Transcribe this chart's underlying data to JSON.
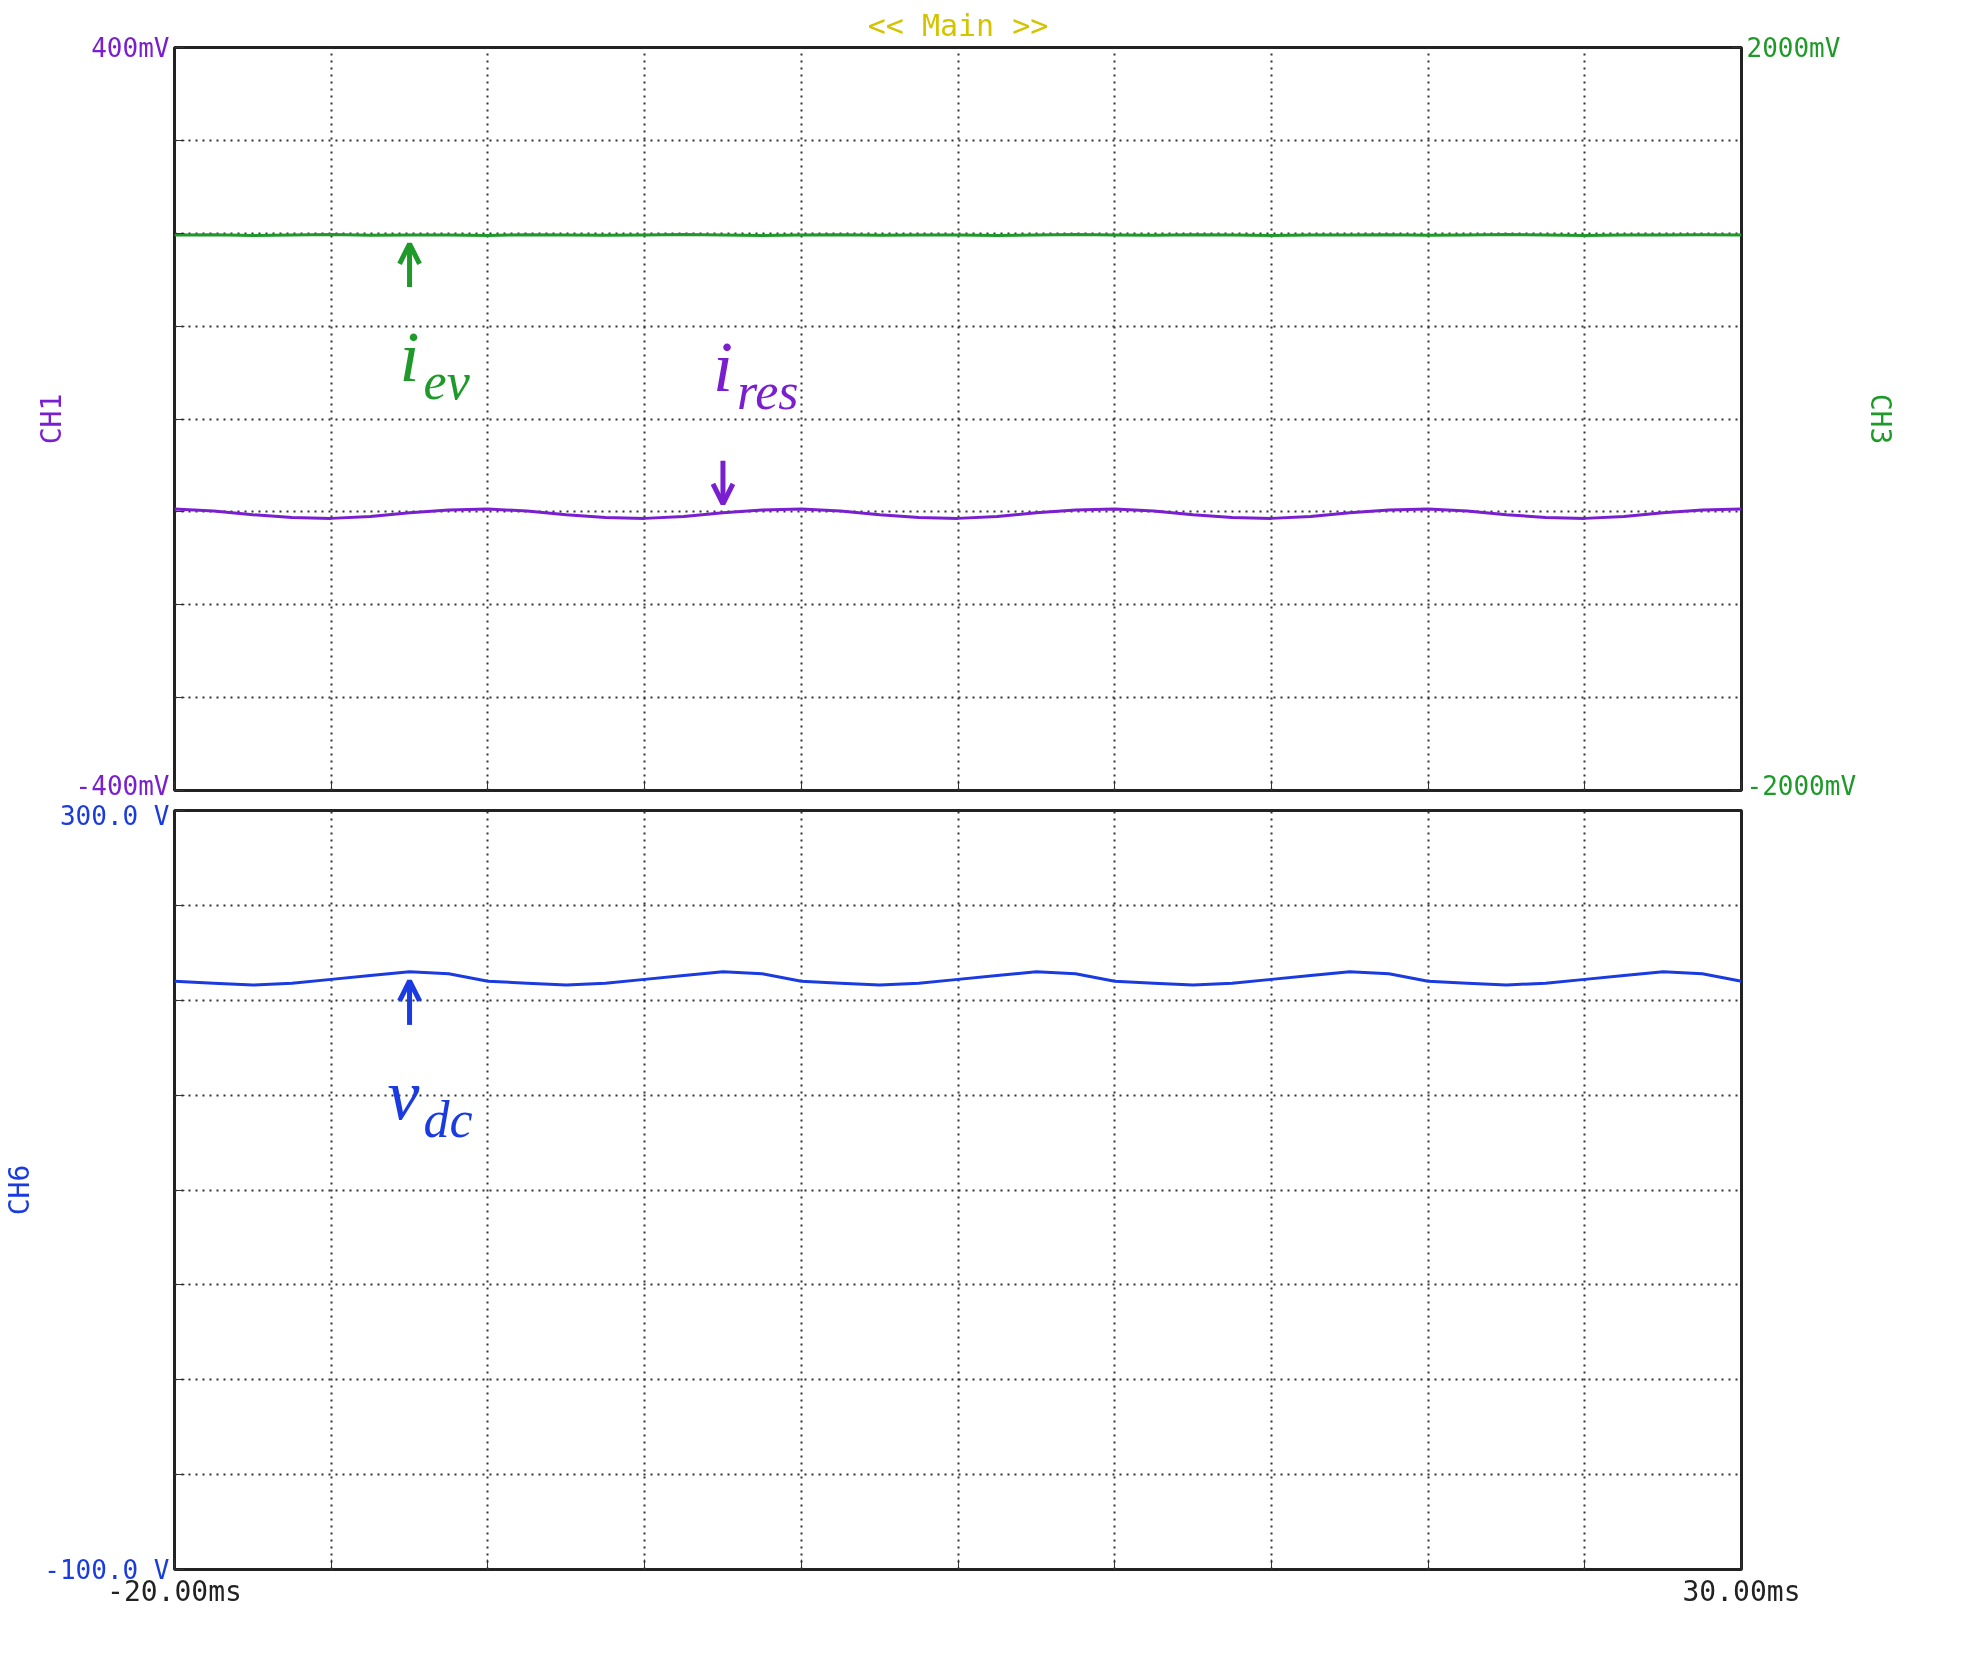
{
  "chart_data": [
    {
      "type": "line",
      "title": "<< Main >>",
      "ylabel": "CH1",
      "y2label": "CH3",
      "x": [
        -20,
        -18.75,
        -17.5,
        -16.25,
        -15,
        -13.75,
        -12.5,
        -11.25,
        -10,
        -8.75,
        -7.5,
        -6.25,
        -5,
        -3.75,
        -2.5,
        -1.25,
        0,
        1.25,
        2.5,
        3.75,
        5,
        6.25,
        7.5,
        8.75,
        10,
        11.25,
        12.5,
        13.75,
        15,
        16.25,
        17.5,
        18.75,
        20,
        21.25,
        22.5,
        23.75,
        25,
        26.25,
        27.5,
        28.75,
        30
      ],
      "series": [
        {
          "name": "i$_{ev}$",
          "color": "#1f9a2a",
          "axis": "y2",
          "values": [
            990,
            992,
            988,
            990,
            993,
            989,
            991,
            990,
            988,
            992,
            990,
            989,
            991,
            993,
            990,
            988,
            990,
            992,
            989,
            991,
            990,
            988,
            991,
            993,
            990,
            989,
            992,
            990,
            988,
            991,
            990,
            992,
            989,
            990,
            993,
            990,
            988,
            991,
            990,
            992,
            990
          ]
        },
        {
          "name": "i$_{res}$",
          "color": "#7a1fd0",
          "values": [
            -97,
            -99,
            -103,
            -106,
            -107,
            -105,
            -101,
            -98,
            -97,
            -99,
            -103,
            -106,
            -107,
            -105,
            -101,
            -98,
            -97,
            -99,
            -103,
            -106,
            -107,
            -105,
            -101,
            -98,
            -97,
            -99,
            -103,
            -106,
            -107,
            -105,
            -101,
            -98,
            -97,
            -99,
            -103,
            -106,
            -107,
            -105,
            -101,
            -98,
            -97
          ]
        }
      ],
      "xlim": [
        -20,
        30
      ],
      "xticks": [
        {
          "value": -20,
          "label": null
        },
        {
          "value": -15,
          "label": null
        },
        {
          "value": -10,
          "label": null
        },
        {
          "value": -5,
          "label": null
        },
        {
          "value": 0,
          "label": null
        },
        {
          "value": 5,
          "label": null
        },
        {
          "value": 10,
          "label": null
        },
        {
          "value": 15,
          "label": null
        },
        {
          "value": 20,
          "label": null
        },
        {
          "value": 25,
          "label": null
        },
        {
          "value": 30,
          "label": null
        }
      ],
      "ylim": [
        -400,
        400
      ],
      "yticks": [
        {
          "value": -400,
          "label": "-400mV"
        },
        {
          "value": -300,
          "label": null
        },
        {
          "value": -200,
          "label": null
        },
        {
          "value": -100,
          "label": null
        },
        {
          "value": 0,
          "label": null
        },
        {
          "value": 100,
          "label": null
        },
        {
          "value": 200,
          "label": null
        },
        {
          "value": 300,
          "label": null
        },
        {
          "value": 400,
          "label": "400mV"
        }
      ],
      "y2lim": [
        -2000,
        2000
      ],
      "y2ticks": [
        {
          "value": -2000,
          "label": "-2000mV"
        },
        {
          "value": 2000,
          "label": "2000mV"
        }
      ],
      "grid": true,
      "tick_labels": "y"
    },
    {
      "type": "line",
      "ylabel": "CH6",
      "x": [
        -20,
        -18.75,
        -17.5,
        -16.25,
        -15,
        -13.75,
        -12.5,
        -11.25,
        -10,
        -8.75,
        -7.5,
        -6.25,
        -5,
        -3.75,
        -2.5,
        -1.25,
        0,
        1.25,
        2.5,
        3.75,
        5,
        6.25,
        7.5,
        8.75,
        10,
        11.25,
        12.5,
        13.75,
        15,
        16.25,
        17.5,
        18.75,
        20,
        21.25,
        22.5,
        23.75,
        25,
        26.25,
        27.5,
        28.75,
        30
      ],
      "series": [
        {
          "name": "v$_{dc}$",
          "color": "#1a3be0",
          "values": [
            210,
            209,
            208,
            209,
            211,
            213,
            215,
            214,
            210,
            209,
            208,
            209,
            211,
            213,
            215,
            214,
            210,
            209,
            208,
            209,
            211,
            213,
            215,
            214,
            210,
            209,
            208,
            209,
            211,
            213,
            215,
            214,
            210,
            209,
            208,
            209,
            211,
            213,
            215,
            214,
            210
          ]
        }
      ],
      "xlim": [
        -20,
        30
      ],
      "xticks": [
        {
          "value": -20,
          "label": "-20.00ms"
        },
        {
          "value": -15,
          "label": null
        },
        {
          "value": -10,
          "label": null
        },
        {
          "value": -5,
          "label": null
        },
        {
          "value": 0,
          "label": null
        },
        {
          "value": 5,
          "label": null
        },
        {
          "value": 10,
          "label": null
        },
        {
          "value": 15,
          "label": null
        },
        {
          "value": 20,
          "label": null
        },
        {
          "value": 25,
          "label": null
        },
        {
          "value": 30,
          "label": "30.00ms"
        }
      ],
      "ylim": [
        -100,
        300
      ],
      "yticks": [
        {
          "value": -100,
          "label": "-100.0 V"
        },
        {
          "value": -50,
          "label": null
        },
        {
          "value": 0,
          "label": null
        },
        {
          "value": 50,
          "label": null
        },
        {
          "value": 100,
          "label": null
        },
        {
          "value": 150,
          "label": null
        },
        {
          "value": 200,
          "label": null
        },
        {
          "value": 250,
          "label": null
        },
        {
          "value": 300,
          "label": "300.0 V"
        }
      ],
      "grid": true
    }
  ]
}
